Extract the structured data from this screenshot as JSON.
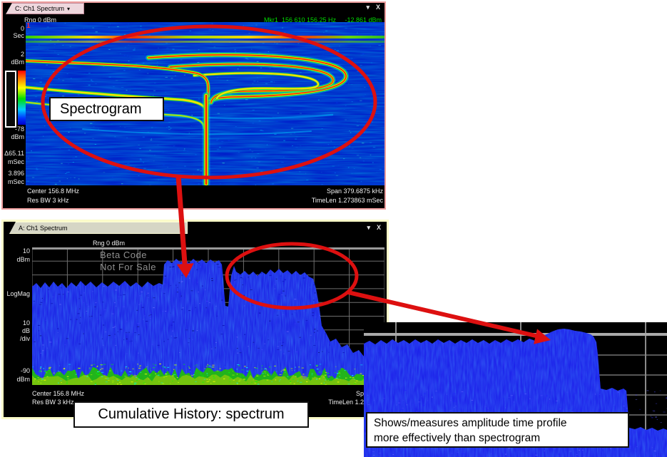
{
  "top_window": {
    "tab_label": "C: Ch1 Spectrum",
    "tab_caret": "▾",
    "controls": {
      "menu": "▾",
      "close": "X"
    },
    "range_label": "Rng 0 dBm",
    "marker": {
      "number": "1",
      "readout": "Mkr1  156 610 156.25 Hz",
      "level": "-12.861 dBm"
    },
    "axis": {
      "time_start": "0",
      "time_start_unit": "Sec",
      "ref_top": "2",
      "ref_top_unit": "dBm",
      "ref_bottom": "-78",
      "ref_bottom_unit": "dBm",
      "delta_time": "Δ65.11",
      "delta_time_unit": "mSec",
      "time_res": "3.896",
      "time_res_unit": "mSec"
    },
    "footer": {
      "center": "Center 156.8 MHz",
      "res_bw": "Res BW 3 kHz",
      "span": "Span 379.6875 kHz",
      "time_len": "TimeLen 1.273863 mSec"
    }
  },
  "bottom_window": {
    "tab_label": "A: Ch1 Spectrum",
    "controls": {
      "menu": "▾",
      "close": "X"
    },
    "range_label": "Rng 0 dBm",
    "watermark": {
      "line1": "Beta Code",
      "line2": "Not For Sale"
    },
    "axis": {
      "ref_top": "10",
      "ref_top_unit": "dBm",
      "format": "LogMag",
      "scale": "10",
      "scale_unit": "dB",
      "scale_suffix": "/div",
      "ref_bottom": "-90",
      "ref_bottom_unit": "dBm"
    },
    "footer": {
      "center": "Center 156.8 MHz",
      "res_bw": "Res BW 3 kHz",
      "span_visible": "Sp",
      "time_len_visible": "TimeLen 1.2"
    }
  },
  "annotations": {
    "spectrogram_label": "Spectrogram",
    "cumulative_history_label": "Cumulative History: spectrum",
    "inset_caption_line1": "Shows/measures amplitude time profile",
    "inset_caption_line2": "more effectively than spectrogram"
  },
  "colors": {
    "annotation_red": "#dd1010",
    "marker_green": "#00dc00",
    "top_window_border": "#ee9f9f",
    "bottom_window_border": "#fbfbc9",
    "spectrum_blue": "#1616e2"
  }
}
